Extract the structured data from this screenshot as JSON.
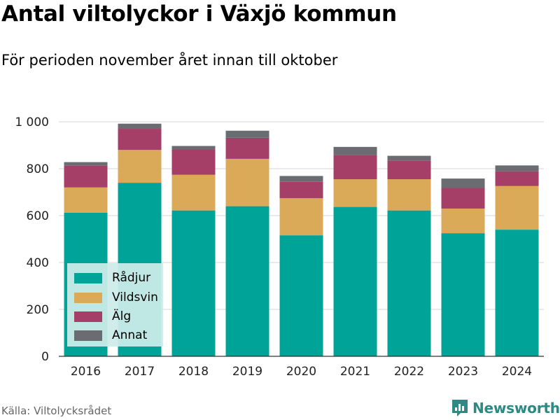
{
  "title": "Antal viltolyckor i Växjö kommun",
  "subtitle": "För perioden november året innan till oktober",
  "source": "Källa: Viltolycksrådet",
  "brand": "Newsworthy",
  "chart_data": {
    "type": "bar",
    "stacked": true,
    "categories": [
      "2016",
      "2017",
      "2018",
      "2019",
      "2020",
      "2021",
      "2022",
      "2023",
      "2024"
    ],
    "series": [
      {
        "name": "Rådjur",
        "color": "#00a397",
        "values": [
          612,
          740,
          622,
          640,
          516,
          637,
          622,
          525,
          540
        ]
      },
      {
        "name": "Vildsvin",
        "color": "#daaa58",
        "values": [
          108,
          140,
          152,
          202,
          158,
          118,
          133,
          105,
          186
        ]
      },
      {
        "name": "Älg",
        "color": "#a53f68",
        "values": [
          93,
          90,
          108,
          90,
          70,
          103,
          80,
          88,
          63
        ]
      },
      {
        "name": "Annat",
        "color": "#6b6c71",
        "values": [
          15,
          22,
          15,
          30,
          25,
          35,
          20,
          40,
          25
        ]
      }
    ],
    "ylim": [
      0,
      1000
    ],
    "yticks": [
      0,
      200,
      400,
      600,
      800,
      1000
    ],
    "ytick_labels": [
      "0",
      "200",
      "400",
      "600",
      "800",
      "1 000"
    ],
    "xlabel": "",
    "ylabel": "",
    "grid": true,
    "legend_position": "bottom-left"
  }
}
